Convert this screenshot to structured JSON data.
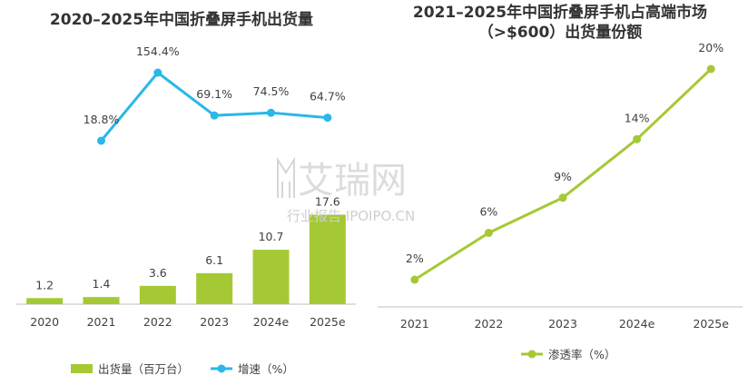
{
  "colors": {
    "bar": "#a5c934",
    "growth_line": "#29b8e8",
    "penetration_line": "#a5c934",
    "axis": "#bfbfbf",
    "text": "#404040"
  },
  "watermark": {
    "brand": "艾瑞网",
    "sub": "行业报告 IPOIPO.CN"
  },
  "chart_data": [
    {
      "type": "bar",
      "title": "2020–2025年中国折叠屏手机出货量",
      "categories": [
        "2020",
        "2021",
        "2022",
        "2023",
        "2024e",
        "2025e"
      ],
      "series": [
        {
          "name": "出货量（百万台）",
          "type": "bar",
          "values": [
            1.2,
            1.4,
            3.6,
            6.1,
            10.7,
            17.6
          ],
          "value_labels": [
            "1.2",
            "1.4",
            "3.6",
            "6.1",
            "10.7",
            "17.6"
          ]
        },
        {
          "name": "增速（%）",
          "type": "line",
          "values": [
            null,
            18.8,
            154.4,
            69.1,
            74.5,
            64.7
          ],
          "value_labels": [
            "",
            "18.8%",
            "154.4%",
            "69.1%",
            "74.5%",
            "64.7%"
          ]
        }
      ],
      "legend": "bottom"
    },
    {
      "type": "line",
      "title_lines": [
        "2021–2025年中国折叠屏手机占高端市场",
        "（>$600）出货量份额"
      ],
      "categories": [
        "2021",
        "2022",
        "2023",
        "2024e",
        "2025e"
      ],
      "series": [
        {
          "name": "渗透率（%）",
          "values": [
            2,
            6,
            9,
            14,
            20
          ],
          "value_labels": [
            "2%",
            "6%",
            "9%",
            "14%",
            "20%"
          ]
        }
      ],
      "legend": "bottom"
    }
  ]
}
